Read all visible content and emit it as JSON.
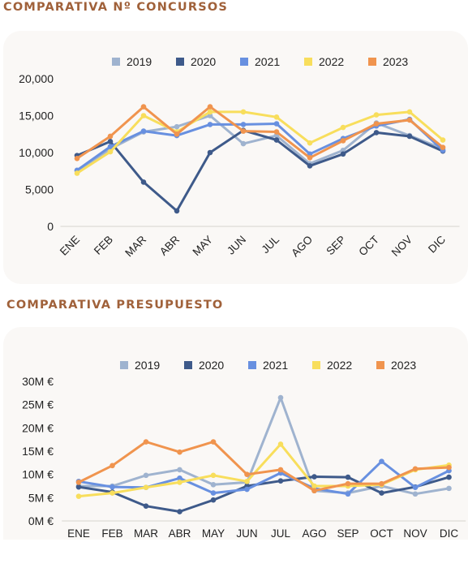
{
  "chart_data": [
    {
      "type": "line",
      "title": "COMPARATIVA Nº CONCURSOS",
      "categories": [
        "ENE",
        "FEB",
        "MAR",
        "ABR",
        "MAY",
        "JUN",
        "JUL",
        "AGO",
        "SEP",
        "OCT",
        "NOV",
        "DIC"
      ],
      "yticks": [
        "0",
        "5,000",
        "10,000",
        "15,000",
        "20,000"
      ],
      "ylim": [
        0,
        20000
      ],
      "legend_position": "top-center",
      "grid": false,
      "series": [
        {
          "name": "2019",
          "color": "#9fb3cf",
          "values": [
            7500,
            10500,
            12800,
            13500,
            15000,
            11200,
            12300,
            8500,
            10300,
            14000,
            12300,
            10500
          ]
        },
        {
          "name": "2020",
          "color": "#3e5a8a",
          "values": [
            9600,
            11500,
            6000,
            2100,
            10000,
            13000,
            11700,
            8200,
            9800,
            12700,
            12200,
            10200
          ]
        },
        {
          "name": "2021",
          "color": "#6890e0",
          "values": [
            7600,
            10800,
            12900,
            12300,
            13800,
            13800,
            13900,
            9800,
            11900,
            13600,
            14500,
            10300
          ]
        },
        {
          "name": "2022",
          "color": "#f8de5c",
          "values": [
            7200,
            10100,
            15000,
            12800,
            15500,
            15500,
            14800,
            11300,
            13400,
            15100,
            15500,
            11700
          ]
        },
        {
          "name": "2023",
          "color": "#f0944e",
          "values": [
            9200,
            12200,
            16200,
            12500,
            16200,
            12900,
            12800,
            9300,
            11600,
            13900,
            14400,
            10700
          ]
        }
      ]
    },
    {
      "type": "line",
      "title": "COMPARATIVA PRESUPUESTO",
      "categories": [
        "ENE",
        "FEB",
        "MAR",
        "ABR",
        "MAY",
        "JUN",
        "JUL",
        "AGO",
        "SEP",
        "OCT",
        "NOV",
        "DIC"
      ],
      "yticks": [
        "0M €",
        "5M €",
        "10M €",
        "15M €",
        "20M €",
        "25M €",
        "30M €"
      ],
      "ylim": [
        0,
        30
      ],
      "legend_position": "top-center",
      "grid": false,
      "series": [
        {
          "name": "2019",
          "color": "#9fb3cf",
          "values": [
            7.5,
            7.5,
            9.8,
            11.0,
            7.8,
            8.3,
            26.5,
            6.5,
            6.0,
            7.5,
            5.8,
            7.0
          ]
        },
        {
          "name": "2020",
          "color": "#3e5a8a",
          "values": [
            7.3,
            6.2,
            3.2,
            2.0,
            4.5,
            7.5,
            8.6,
            9.5,
            9.4,
            6.0,
            7.3,
            9.4
          ]
        },
        {
          "name": "2021",
          "color": "#6890e0",
          "values": [
            8.5,
            7.3,
            7.2,
            9.2,
            6.0,
            6.8,
            10.3,
            7.0,
            5.8,
            12.8,
            7.2,
            10.8
          ]
        },
        {
          "name": "2022",
          "color": "#f8de5c",
          "values": [
            5.3,
            6.0,
            7.2,
            8.3,
            9.8,
            8.5,
            16.5,
            7.5,
            7.5,
            7.8,
            11.0,
            12.0
          ]
        },
        {
          "name": "2023",
          "color": "#f0944e",
          "values": [
            8.3,
            11.9,
            17.0,
            14.8,
            17.0,
            10.0,
            11.0,
            6.5,
            8.0,
            8.0,
            11.2,
            11.5
          ]
        }
      ]
    }
  ]
}
